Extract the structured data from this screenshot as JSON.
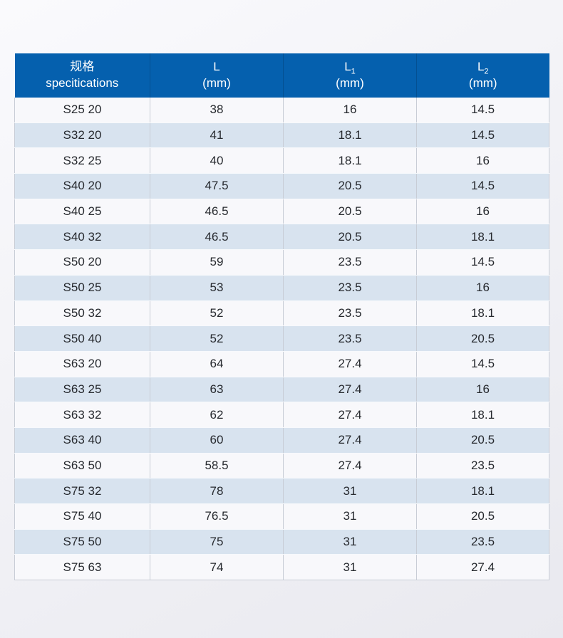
{
  "colors": {
    "header_bg": "#0560ae",
    "header_text": "#ffffff",
    "row_white_bg": "#f8f8fb",
    "row_blue_bg": "#d8e3ef",
    "cell_text": "#26292e",
    "grid_line": "#c8cdd6",
    "page_bg_top": "#fafafd",
    "page_bg_bottom": "#e9e9ef"
  },
  "chart_data": {
    "type": "table",
    "title": "",
    "legend_position": "none",
    "columns": [
      {
        "zh": "规格",
        "en": "specitications"
      },
      {
        "symbol": "L",
        "sub": "",
        "unit": "(mm)"
      },
      {
        "symbol": "L",
        "sub": "1",
        "unit": "(mm)"
      },
      {
        "symbol": "L",
        "sub": "2",
        "unit": "(mm)"
      }
    ],
    "rows": [
      [
        "S25 20",
        "38",
        "16",
        "14.5"
      ],
      [
        "S32 20",
        "41",
        "18.1",
        "14.5"
      ],
      [
        "S32 25",
        "40",
        "18.1",
        "16"
      ],
      [
        "S40 20",
        "47.5",
        "20.5",
        "14.5"
      ],
      [
        "S40 25",
        "46.5",
        "20.5",
        "16"
      ],
      [
        "S40 32",
        "46.5",
        "20.5",
        "18.1"
      ],
      [
        "S50 20",
        "59",
        "23.5",
        "14.5"
      ],
      [
        "S50 25",
        "53",
        "23.5",
        "16"
      ],
      [
        "S50 32",
        "52",
        "23.5",
        "18.1"
      ],
      [
        "S50 40",
        "52",
        "23.5",
        "20.5"
      ],
      [
        "S63 20",
        "64",
        "27.4",
        "14.5"
      ],
      [
        "S63 25",
        "63",
        "27.4",
        "16"
      ],
      [
        "S63 32",
        "62",
        "27.4",
        "18.1"
      ],
      [
        "S63 40",
        "60",
        "27.4",
        "20.5"
      ],
      [
        "S63 50",
        "58.5",
        "27.4",
        "23.5"
      ],
      [
        "S75 32",
        "78",
        "31",
        "18.1"
      ],
      [
        "S75 40",
        "76.5",
        "31",
        "20.5"
      ],
      [
        "S75 50",
        "75",
        "31",
        "23.5"
      ],
      [
        "S75 63",
        "74",
        "31",
        "27.4"
      ]
    ]
  }
}
